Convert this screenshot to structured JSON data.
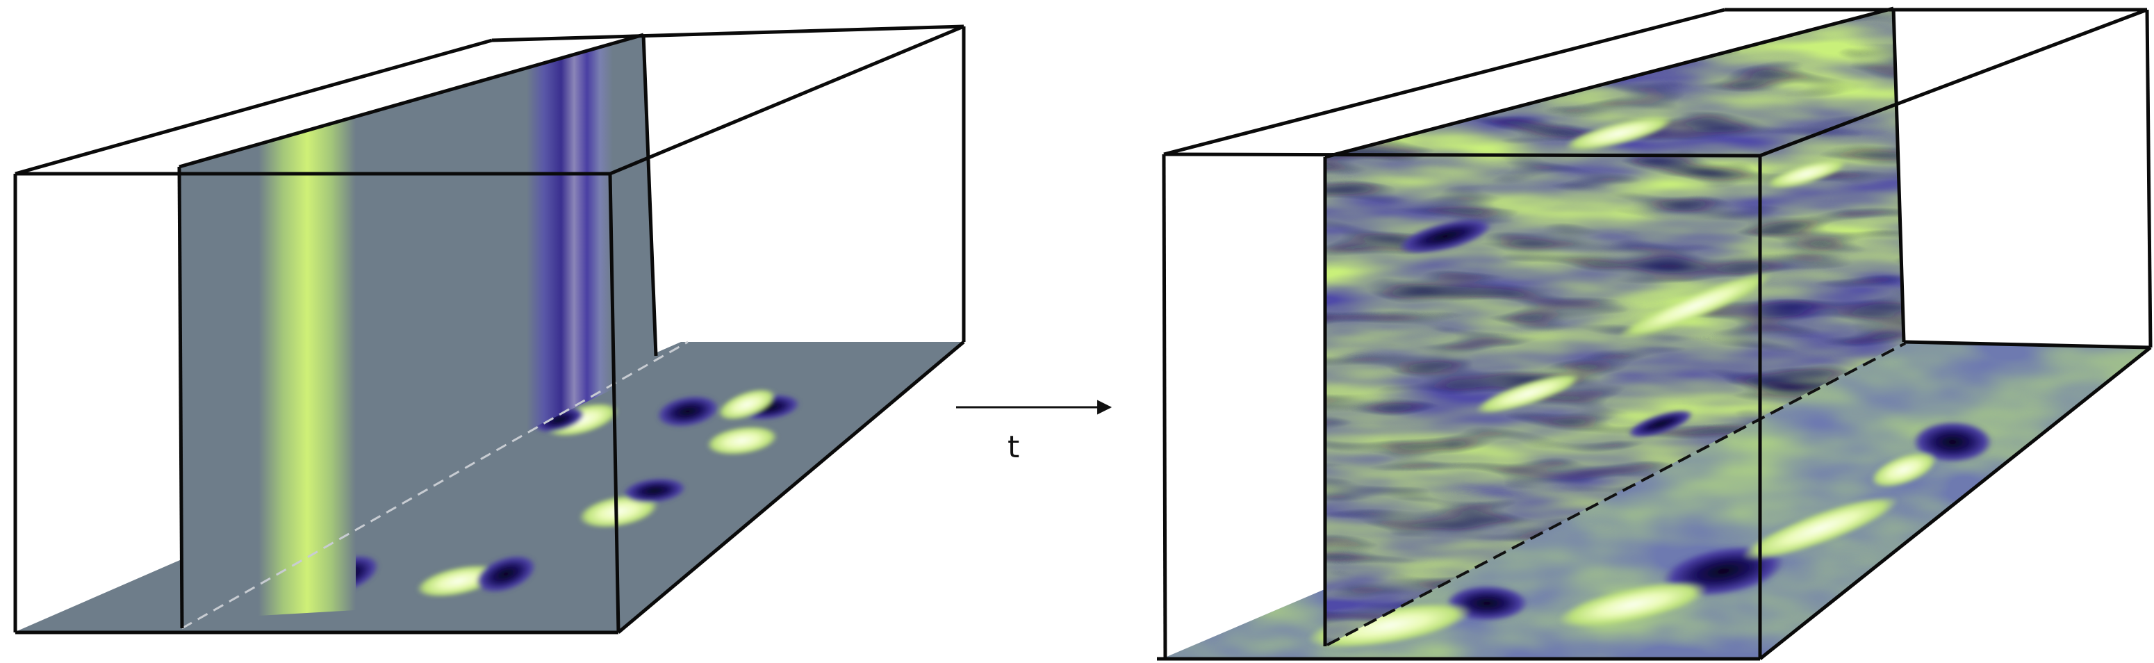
{
  "diagram": {
    "time_label": "t"
  },
  "colors": {
    "neutral_field": "#6e7d8a",
    "bright": "#f2fbd0",
    "light": "#c6ef78",
    "mid_green": "#94c483",
    "indigo": "#4a3fa3",
    "dark": "#07051f",
    "edge": "#0a0a0a",
    "dashed_light": "#c8ccd2",
    "dashed_dark": "#111111"
  }
}
